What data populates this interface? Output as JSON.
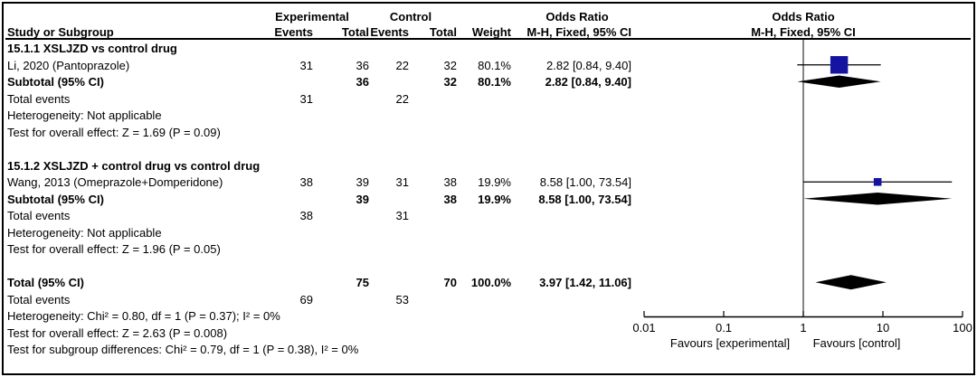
{
  "table": {
    "headers": {
      "study_or_subgroup": "Study or Subgroup",
      "experimental": "Experimental",
      "control": "Control",
      "events": "Events",
      "total": "Total",
      "weight": "Weight",
      "odds_ratio": "Odds Ratio",
      "mh_fixed_ci": "M-H, Fixed, 95% CI"
    },
    "rows": [
      {
        "kind": "subgroup-header",
        "label": "15.1.1 XSLJZD vs control drug"
      },
      {
        "kind": "study",
        "label": "Li, 2020 (Pantoprazole)",
        "e_events": "31",
        "e_total": "36",
        "c_events": "22",
        "c_total": "32",
        "weight": "80.1%",
        "or_ci": "2.82 [0.84, 9.40]"
      },
      {
        "kind": "subtotal",
        "label": "Subtotal (95% CI)",
        "e_total": "36",
        "c_total": "32",
        "weight": "80.1%",
        "or_ci": "2.82 [0.84, 9.40]"
      },
      {
        "kind": "text",
        "label": "Total events",
        "e_events": "31",
        "c_events": "22"
      },
      {
        "kind": "text",
        "label": "Heterogeneity: Not applicable"
      },
      {
        "kind": "text",
        "label": "Test for overall effect: Z = 1.69 (P = 0.09)"
      },
      {
        "kind": "blank",
        "label": ""
      },
      {
        "kind": "subgroup-header",
        "label": "15.1.2 XSLJZD + control drug vs control drug"
      },
      {
        "kind": "study",
        "label": "Wang, 2013 (Omeprazole+Domperidone)",
        "e_events": "38",
        "e_total": "39",
        "c_events": "31",
        "c_total": "38",
        "weight": "19.9%",
        "or_ci": "8.58 [1.00, 73.54]"
      },
      {
        "kind": "subtotal",
        "label": "Subtotal (95% CI)",
        "e_total": "39",
        "c_total": "38",
        "weight": "19.9%",
        "or_ci": "8.58 [1.00, 73.54]"
      },
      {
        "kind": "text",
        "label": "Total events",
        "e_events": "38",
        "c_events": "31"
      },
      {
        "kind": "text",
        "label": "Heterogeneity: Not applicable"
      },
      {
        "kind": "text",
        "label": "Test for overall effect: Z = 1.96 (P = 0.05)"
      },
      {
        "kind": "blank",
        "label": ""
      },
      {
        "kind": "total",
        "label": "Total (95% CI)",
        "e_total": "75",
        "c_total": "70",
        "weight": "100.0%",
        "or_ci": "3.97 [1.42, 11.06]"
      },
      {
        "kind": "text",
        "label": "Total events",
        "e_events": "69",
        "c_events": "53"
      },
      {
        "kind": "text",
        "label": "Heterogeneity: Chi² = 0.80, df = 1 (P = 0.37); I² = 0%"
      },
      {
        "kind": "text",
        "label": "Test for overall effect: Z = 2.63 (P = 0.008)"
      },
      {
        "kind": "text",
        "label": "Test for subgroup differences: Chi² = 0.79, df = 1 (P = 0.38), I² = 0%"
      }
    ]
  },
  "chart_data": {
    "type": "forest",
    "effect_measure": "Odds Ratio",
    "method": "M-H, Fixed, 95% CI",
    "x_scale": "log10",
    "x_ticks": [
      0.01,
      0.1,
      1,
      10,
      100
    ],
    "x_tick_labels": [
      "0.01",
      "0.1",
      "1",
      "10",
      "100"
    ],
    "null_line": 1,
    "favours_left": "Favours [experimental]",
    "favours_right": "Favours [control]",
    "marker_color": "#1414A0",
    "diamond_color": "#000000",
    "studies": [
      {
        "name": "Li, 2020 (Pantoprazole)",
        "or": 2.82,
        "ci_low": 0.84,
        "ci_high": 9.4,
        "weight_pct": 80.1,
        "row": 1
      },
      {
        "name": "Wang, 2013 (Omeprazole+Domperidone)",
        "or": 8.58,
        "ci_low": 1.0,
        "ci_high": 73.54,
        "weight_pct": 19.9,
        "row": 8
      }
    ],
    "summaries": [
      {
        "name": "Subtotal 15.1.1",
        "or": 2.82,
        "ci_low": 0.84,
        "ci_high": 9.4,
        "is_total": false,
        "row": 2
      },
      {
        "name": "Subtotal 15.1.2",
        "or": 8.58,
        "ci_low": 1.0,
        "ci_high": 73.54,
        "is_total": false,
        "row": 9
      },
      {
        "name": "Total",
        "or": 3.97,
        "ci_low": 1.42,
        "ci_high": 11.06,
        "is_total": true,
        "row": 14
      }
    ]
  }
}
